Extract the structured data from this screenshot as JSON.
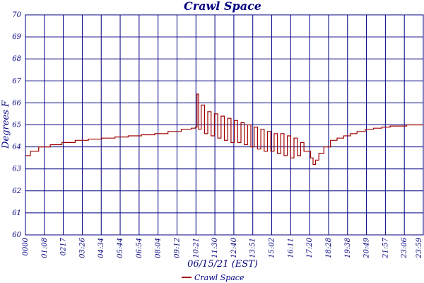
{
  "chart_data": {
    "type": "line",
    "title": "Crawl Space",
    "xlabel": "06/15/21 (EST)",
    "ylabel": "Degrees F",
    "ylim": [
      60,
      70
    ],
    "yticks": [
      "60",
      "61",
      "62",
      "63",
      "64",
      "65",
      "66",
      "67",
      "68",
      "69",
      "70"
    ],
    "xticks": [
      "0000",
      "01:08",
      "0217",
      "03:26",
      "04:34",
      "05:44",
      "06:54",
      "08:04",
      "09:12",
      "10:21",
      "11:30",
      "12:40",
      "13:51",
      "15:02",
      "16:11",
      "17:20",
      "18:28",
      "19:38",
      "20:49",
      "21:57",
      "23:06",
      "23:59"
    ],
    "grid": true,
    "legend_position": "bottom-center",
    "series": [
      {
        "name": "Crawl Space",
        "color": "#a00000",
        "x_hours": [
          0,
          0.3,
          0.8,
          1.5,
          2.2,
          3.0,
          3.8,
          4.6,
          5.4,
          6.2,
          7.0,
          7.8,
          8.6,
          9.4,
          10.0,
          10.25,
          10.35,
          10.45,
          10.6,
          10.8,
          11.0,
          11.2,
          11.4,
          11.6,
          11.8,
          12.0,
          12.2,
          12.4,
          12.6,
          12.8,
          13.0,
          13.2,
          13.4,
          13.6,
          13.8,
          14.0,
          14.2,
          14.4,
          14.6,
          14.8,
          15.0,
          15.2,
          15.4,
          15.6,
          15.8,
          16.0,
          16.2,
          16.4,
          16.6,
          16.8,
          17.0,
          17.2,
          17.35,
          17.5,
          17.7,
          18.0,
          18.4,
          18.8,
          19.2,
          19.6,
          20.0,
          20.5,
          21.0,
          21.5,
          22.0,
          22.5,
          23.0,
          23.5,
          23.98
        ],
        "values": [
          63.6,
          63.8,
          64.0,
          64.1,
          64.2,
          64.3,
          64.35,
          64.4,
          64.45,
          64.5,
          64.55,
          64.6,
          64.7,
          64.8,
          64.85,
          64.9,
          66.4,
          64.8,
          65.9,
          64.6,
          65.6,
          64.5,
          65.5,
          64.4,
          65.4,
          64.3,
          65.3,
          64.2,
          65.2,
          64.2,
          65.1,
          64.1,
          65.0,
          64.0,
          64.9,
          63.9,
          64.8,
          63.8,
          64.7,
          63.8,
          64.6,
          63.7,
          64.6,
          63.6,
          64.5,
          63.5,
          64.4,
          63.6,
          64.2,
          63.8,
          63.8,
          63.5,
          63.2,
          63.4,
          63.7,
          64.0,
          64.3,
          64.4,
          64.5,
          64.6,
          64.7,
          64.8,
          64.85,
          64.9,
          64.95,
          64.95,
          65.0,
          65.0,
          65.0
        ]
      }
    ]
  }
}
